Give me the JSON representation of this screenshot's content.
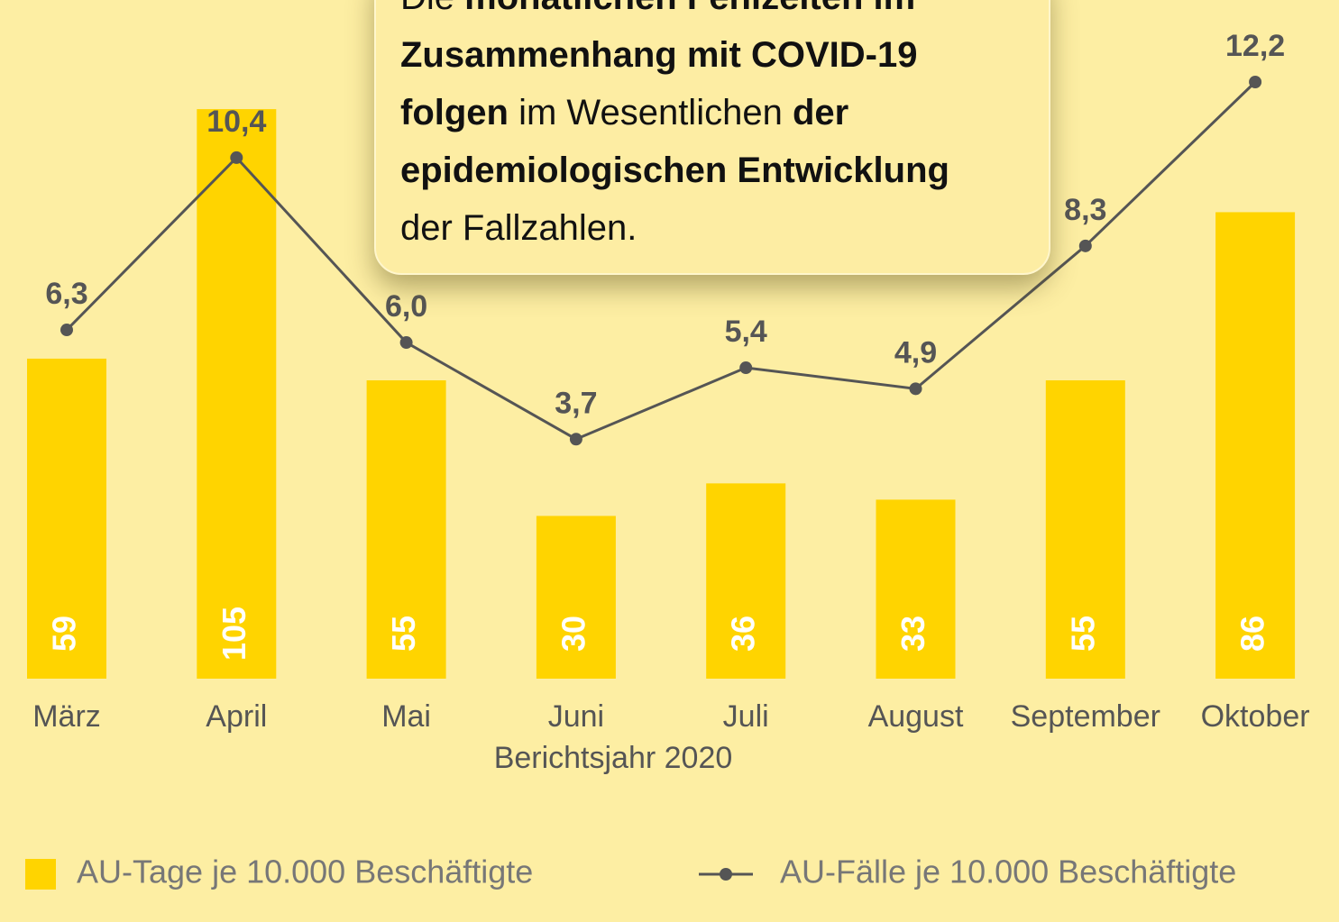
{
  "chart_data": {
    "type": "bar_line",
    "categories": [
      "März",
      "April",
      "Mai",
      "Juni",
      "Juli",
      "August",
      "September",
      "Oktober"
    ],
    "series": [
      {
        "name": "AU-Tage je 10.000 Beschäftigte",
        "type": "bar",
        "color": "#ffd400",
        "values": [
          59,
          105,
          55,
          30,
          36,
          33,
          55,
          86
        ]
      },
      {
        "name": "AU-Fälle je 10.000 Beschäftigte",
        "type": "line",
        "axis": "y2",
        "color": "#555555",
        "values": [
          6.3,
          10.4,
          6.0,
          3.7,
          5.4,
          4.9,
          8.3,
          12.2
        ],
        "value_labels": [
          "6,3",
          "10,4",
          "6,0",
          "3,7",
          "5,4",
          "4,9",
          "8,3",
          "12,2"
        ]
      }
    ],
    "xlabel": "Berichtsjahr 2020",
    "ylim": [
      0,
      110
    ],
    "y2lim": [
      -2,
      12.2
    ],
    "annotation": [
      [
        {
          "text": "Die ",
          "bold": false
        },
        {
          "text": "monatlichen Fehlzeiten im",
          "bold": true
        }
      ],
      [
        {
          "text": "Zusammenhang mit COVID-19",
          "bold": true
        }
      ],
      [
        {
          "text": "folgen",
          "bold": true
        },
        {
          "text": " im Wesentlichen ",
          "bold": false
        },
        {
          "text": "der",
          "bold": true
        }
      ],
      [
        {
          "text": "epidemiologischen Entwicklung",
          "bold": true
        }
      ],
      [
        {
          "text": "der Fallzahlen.",
          "bold": false
        }
      ]
    ]
  }
}
